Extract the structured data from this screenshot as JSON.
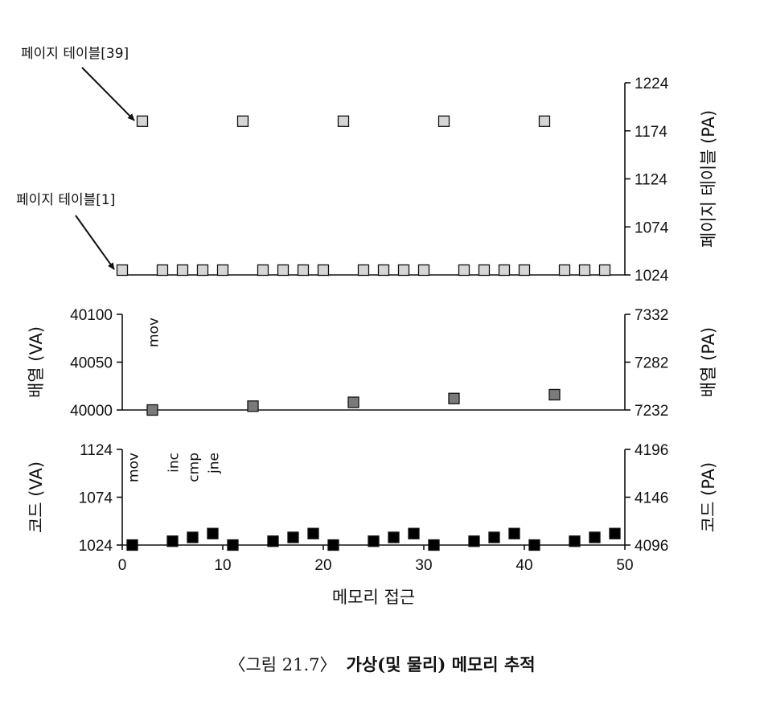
{
  "chart_data": [
    {
      "id": "page_table",
      "type": "scatter",
      "right_ylabel": "페이지 테이블 (PA)",
      "right_yticks": [
        1024,
        1074,
        1124,
        1174,
        1224
      ],
      "ylim": [
        1024,
        1224
      ],
      "annotations": [
        {
          "text": "페이지 테이블[39]",
          "points_to": {
            "x": 2,
            "y": 1184
          }
        },
        {
          "text": "페이지 테이블[1]",
          "points_to": {
            "x": 0,
            "y": 1029
          }
        }
      ],
      "series": [
        {
          "color": "#d6d6d6",
          "points": [
            {
              "x": 0,
              "y": 1029
            },
            {
              "x": 4,
              "y": 1029
            },
            {
              "x": 6,
              "y": 1029
            },
            {
              "x": 8,
              "y": 1029
            },
            {
              "x": 10,
              "y": 1029
            },
            {
              "x": 14,
              "y": 1029
            },
            {
              "x": 16,
              "y": 1029
            },
            {
              "x": 18,
              "y": 1029
            },
            {
              "x": 20,
              "y": 1029
            },
            {
              "x": 24,
              "y": 1029
            },
            {
              "x": 26,
              "y": 1029
            },
            {
              "x": 28,
              "y": 1029
            },
            {
              "x": 30,
              "y": 1029
            },
            {
              "x": 34,
              "y": 1029
            },
            {
              "x": 36,
              "y": 1029
            },
            {
              "x": 38,
              "y": 1029
            },
            {
              "x": 40,
              "y": 1029
            },
            {
              "x": 44,
              "y": 1029
            },
            {
              "x": 46,
              "y": 1029
            },
            {
              "x": 48,
              "y": 1029
            },
            {
              "x": 2,
              "y": 1184
            },
            {
              "x": 12,
              "y": 1184
            },
            {
              "x": 22,
              "y": 1184
            },
            {
              "x": 32,
              "y": 1184
            },
            {
              "x": 42,
              "y": 1184
            }
          ]
        }
      ]
    },
    {
      "id": "array",
      "type": "scatter",
      "left_ylabel": "배열 (VA)",
      "right_ylabel": "배열 (PA)",
      "left_yticks": [
        40000,
        40050,
        40100
      ],
      "right_yticks": [
        7232,
        7282,
        7332
      ],
      "ylim": [
        40000,
        40100
      ],
      "instructions": [
        {
          "text": "mov",
          "x": 3
        }
      ],
      "series": [
        {
          "color": "#7a7a7a",
          "points": [
            {
              "x": 3,
              "y": 40000
            },
            {
              "x": 13,
              "y": 40004
            },
            {
              "x": 23,
              "y": 40008
            },
            {
              "x": 33,
              "y": 40012
            },
            {
              "x": 43,
              "y": 40016
            }
          ]
        }
      ]
    },
    {
      "id": "code",
      "type": "scatter",
      "left_ylabel": "코드 (VA)",
      "right_ylabel": "코드 (PA)",
      "left_yticks": [
        1024,
        1074,
        1124
      ],
      "right_yticks": [
        4096,
        4146,
        4196
      ],
      "ylim": [
        1024,
        1124
      ],
      "xlabel": "메모리 접근",
      "xticks": [
        0,
        10,
        20,
        30,
        40,
        50
      ],
      "xlim": [
        0,
        50
      ],
      "instructions": [
        {
          "text": "mov",
          "x": 1
        },
        {
          "text": "inc",
          "x": 5
        },
        {
          "text": "cmp",
          "x": 7
        },
        {
          "text": "jne",
          "x": 9
        }
      ],
      "series": [
        {
          "color": "#000000",
          "points": [
            {
              "x": 1,
              "y": 1024
            },
            {
              "x": 5,
              "y": 1028
            },
            {
              "x": 7,
              "y": 1032
            },
            {
              "x": 9,
              "y": 1036
            },
            {
              "x": 11,
              "y": 1024
            },
            {
              "x": 15,
              "y": 1028
            },
            {
              "x": 17,
              "y": 1032
            },
            {
              "x": 19,
              "y": 1036
            },
            {
              "x": 21,
              "y": 1024
            },
            {
              "x": 25,
              "y": 1028
            },
            {
              "x": 27,
              "y": 1032
            },
            {
              "x": 29,
              "y": 1036
            },
            {
              "x": 31,
              "y": 1024
            },
            {
              "x": 35,
              "y": 1028
            },
            {
              "x": 37,
              "y": 1032
            },
            {
              "x": 39,
              "y": 1036
            },
            {
              "x": 41,
              "y": 1024
            },
            {
              "x": 45,
              "y": 1028
            },
            {
              "x": 47,
              "y": 1032
            },
            {
              "x": 49,
              "y": 1036
            }
          ]
        }
      ]
    }
  ],
  "caption": {
    "prefix": "〈그림 21.7〉",
    "title": "가상(및 물리) 메모리 추적"
  }
}
